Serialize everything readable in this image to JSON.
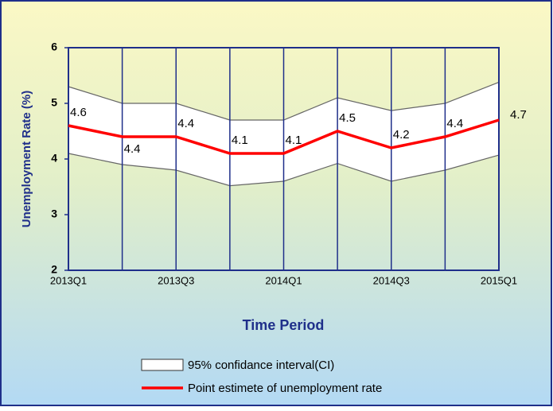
{
  "chart_data": {
    "type": "line",
    "y_label": "Unemployment Rate (%)",
    "x_label": "Time Period",
    "categories": [
      "2013Q1",
      null,
      "2013Q3",
      null,
      "2014Q1",
      null,
      "2014Q3",
      null,
      "2015Q1"
    ],
    "series": [
      {
        "name": "95% confidance interval(CI)",
        "color": "#ffffff",
        "upper": [
          5.3,
          5.0,
          5.0,
          4.7,
          4.7,
          5.1,
          4.87,
          5.0,
          5.38
        ],
        "lower": [
          4.1,
          3.9,
          3.8,
          3.52,
          3.6,
          3.92,
          3.6,
          3.8,
          4.07
        ]
      },
      {
        "name": "Point estimete of unemployment rate",
        "color": "#ff0000",
        "values": [
          4.6,
          4.4,
          4.4,
          4.1,
          4.1,
          4.5,
          4.2,
          4.4,
          4.7
        ]
      }
    ],
    "ylim": [
      2,
      6
    ],
    "yticks": [
      2,
      3,
      4,
      5,
      6
    ]
  }
}
